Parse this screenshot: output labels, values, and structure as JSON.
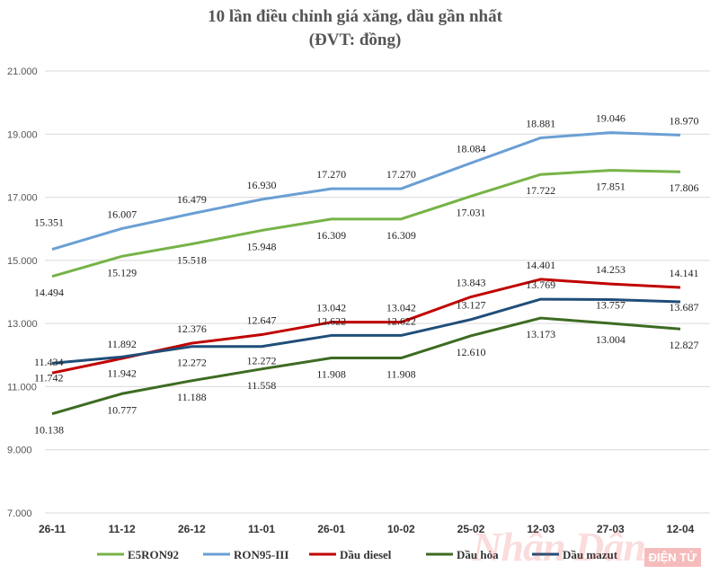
{
  "chart_data": {
    "type": "line",
    "title": "10 lần điều chỉnh giá xăng, dầu gần nhất",
    "subtitle": "(ĐVT: đồng)",
    "categories": [
      "26-11",
      "11-12",
      "26-12",
      "11-01",
      "26-01",
      "10-02",
      "25-02",
      "12-03",
      "27-03",
      "12-04"
    ],
    "ylim": [
      7000,
      21000
    ],
    "yticks": [
      "7.000",
      "9.000",
      "11.000",
      "13.000",
      "15.000",
      "17.000",
      "19.000",
      "21.000"
    ],
    "grid": true,
    "legend": "bottom",
    "series": [
      {
        "name": "E5RON92",
        "color": "#77b347",
        "values": [
          14494,
          15129,
          15518,
          15948,
          16309,
          16309,
          17031,
          17722,
          17851,
          17806
        ],
        "labels": [
          "14.494",
          "15.129",
          "15.518",
          "15.948",
          "16.309",
          "16.309",
          "17.031",
          "17.722",
          "17.851",
          "17.806"
        ]
      },
      {
        "name": "RON95-III",
        "color": "#6a9fd4",
        "values": [
          15351,
          16007,
          16479,
          16930,
          17270,
          17270,
          18084,
          18881,
          19046,
          18970
        ],
        "labels": [
          "15.351",
          "16.007",
          "16.479",
          "16.930",
          "17.270",
          "17.270",
          "18.084",
          "18.881",
          "19.046",
          "18.970"
        ]
      },
      {
        "name": "Dầu diesel",
        "color": "#c00000",
        "values": [
          11434,
          11892,
          12376,
          12647,
          13042,
          13042,
          13843,
          14401,
          14253,
          14141
        ],
        "labels": [
          "11.434",
          "11.892",
          "12.376",
          "12.647",
          "13.042",
          "13.042",
          "13.843",
          "14.401",
          "14.253",
          "14.141"
        ]
      },
      {
        "name": "Dầu hỏa",
        "color": "#3d6b22",
        "values": [
          10138,
          10777,
          11188,
          11558,
          11908,
          11908,
          12610,
          13173,
          13004,
          12827
        ],
        "labels": [
          "10.138",
          "10.777",
          "11.188",
          "11.558",
          "11.908",
          "11.908",
          "12.610",
          "13.173",
          "13.004",
          "12.827"
        ]
      },
      {
        "name": "Dầu mazut",
        "color": "#1f4e79",
        "values": [
          11742,
          11942,
          12272,
          12272,
          12622,
          12622,
          13127,
          13769,
          13757,
          13687
        ],
        "labels": [
          "11.742",
          "11.942",
          "12.272",
          "12.272",
          "12.622",
          "12.622",
          "13.127",
          "13.769",
          "13.757",
          "13.687"
        ]
      }
    ]
  },
  "watermark": {
    "logo_text": "Nhân Dân",
    "badge_text": "ĐIỆN TỬ"
  }
}
